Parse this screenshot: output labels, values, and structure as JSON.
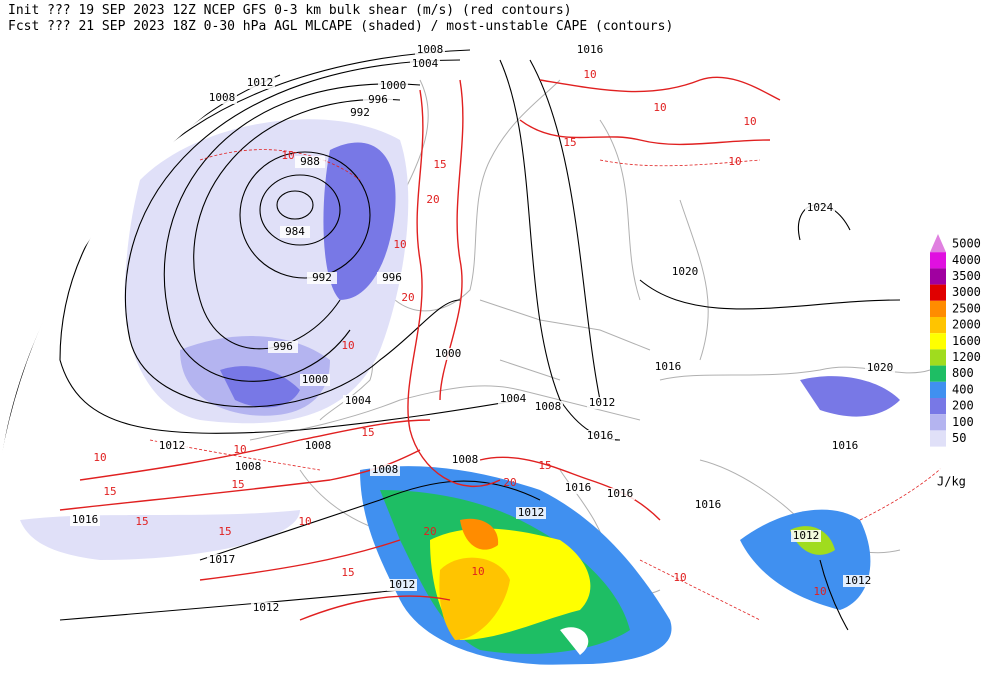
{
  "header": {
    "line1": "Init  ??? 19 SEP 2023 12Z  NCEP GFS 0-3 km bulk shear (m/s) (red contours)",
    "line2": "Fcst ??? 21 SEP 2023 18Z  0-30 hPa AGL MLCAPE (shaded) / most-unstable CAPE (contours)"
  },
  "legend": {
    "unit": "J/kg",
    "items": [
      {
        "value": 5000,
        "color": "#e080e0"
      },
      {
        "value": 4000,
        "color": "#e010e0"
      },
      {
        "value": 3500,
        "color": "#a000a0"
      },
      {
        "value": 3000,
        "color": "#e00000"
      },
      {
        "value": 2500,
        "color": "#ff8c00"
      },
      {
        "value": 2000,
        "color": "#ffc400"
      },
      {
        "value": 1600,
        "color": "#ffff00"
      },
      {
        "value": 1200,
        "color": "#a0dc1e"
      },
      {
        "value": 800,
        "color": "#1ebe64"
      },
      {
        "value": 400,
        "color": "#4090f0"
      },
      {
        "value": 200,
        "color": "#7878e6"
      },
      {
        "value": 100,
        "color": "#b4b4f0"
      },
      {
        "value": 50,
        "color": "#e0e0f8"
      }
    ]
  },
  "map": {
    "pressure_labels": [
      "1008",
      "1004",
      "1012",
      "1008",
      "1000",
      "996",
      "992",
      "988",
      "984",
      "992",
      "996",
      "996",
      "1000",
      "1000",
      "1004",
      "1004",
      "1008",
      "1012",
      "1016",
      "1016",
      "1016",
      "1024",
      "1020",
      "1020",
      "1016",
      "1012",
      "1008",
      "1008",
      "1008",
      "1008",
      "1016",
      "1016",
      "1016",
      "1012",
      "1012",
      "1012",
      "1016",
      "1017",
      "1012",
      "1012"
    ],
    "shear_labels": [
      "10",
      "15",
      "10",
      "10",
      "20",
      "15",
      "10",
      "20",
      "10",
      "15",
      "10",
      "15",
      "10",
      "15",
      "15",
      "10",
      "15",
      "20",
      "15",
      "10",
      "20",
      "15",
      "10",
      "10",
      "10",
      "10"
    ]
  }
}
